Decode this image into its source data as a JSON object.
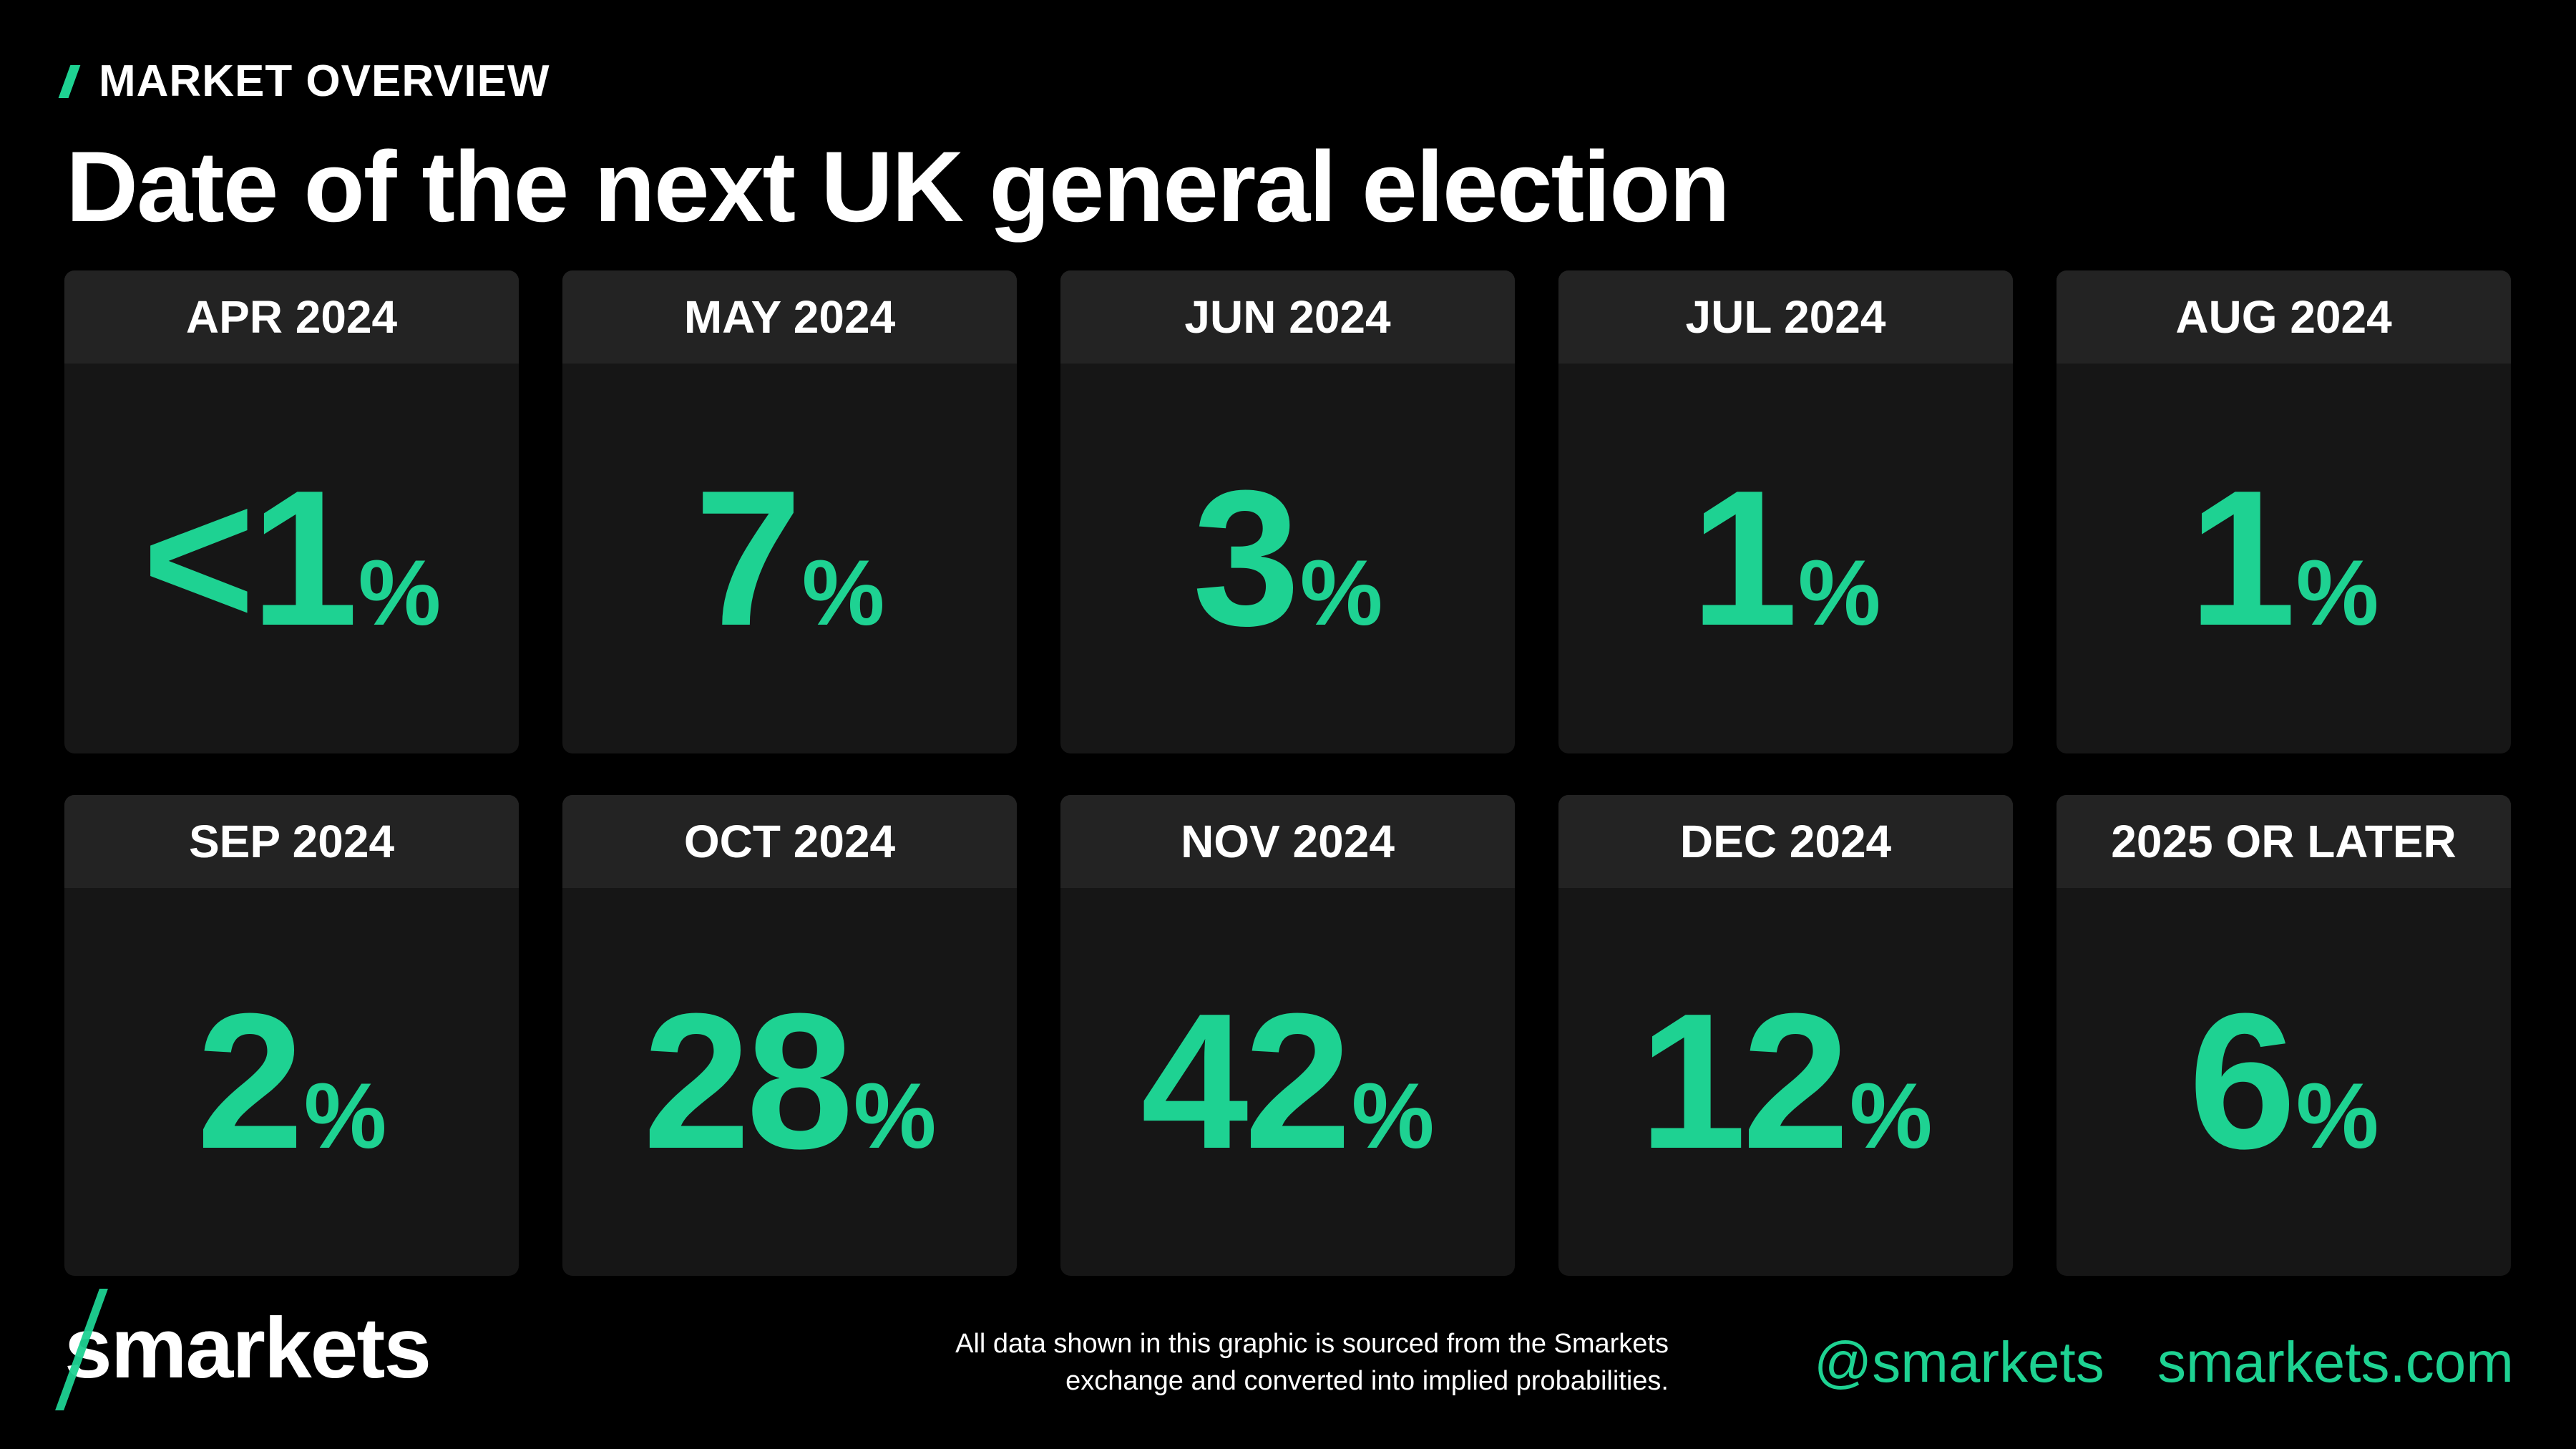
{
  "header": {
    "kicker": "MARKET OVERVIEW",
    "title": "Date of the next UK general election"
  },
  "cards": [
    {
      "label": "APR 2024",
      "value": "<1",
      "unit": "%"
    },
    {
      "label": "MAY 2024",
      "value": "7",
      "unit": "%"
    },
    {
      "label": "JUN 2024",
      "value": "3",
      "unit": "%"
    },
    {
      "label": "JUL 2024",
      "value": "1",
      "unit": "%"
    },
    {
      "label": "AUG 2024",
      "value": "1",
      "unit": "%"
    },
    {
      "label": "SEP 2024",
      "value": "2",
      "unit": "%"
    },
    {
      "label": "OCT 2024",
      "value": "28",
      "unit": "%"
    },
    {
      "label": "NOV 2024",
      "value": "42",
      "unit": "%"
    },
    {
      "label": "DEC 2024",
      "value": "12",
      "unit": "%"
    },
    {
      "label": "2025 OR LATER",
      "value": "6",
      "unit": "%"
    }
  ],
  "footer": {
    "logo_first": "s",
    "logo_rest": "markets",
    "note_line1": "All data shown in this graphic is sourced from the Smarkets",
    "note_line2": "exchange and converted into implied probabilities.",
    "twitter": "@smarkets",
    "website": "smarkets.com"
  },
  "colors": {
    "accent": "#1ed292",
    "background": "#000000",
    "card": "#161616",
    "card_header": "#232323"
  }
}
